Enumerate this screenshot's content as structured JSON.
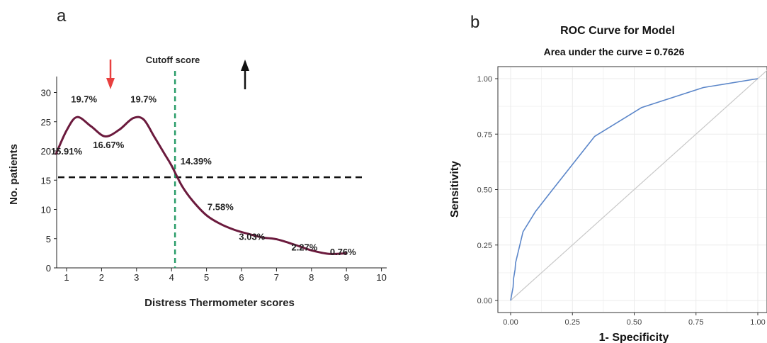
{
  "panels": {
    "a": {
      "letter": "a"
    },
    "b": {
      "letter": "b"
    }
  },
  "colors": {
    "curve_a": "#6b1a3d",
    "cutoff": "#2a9d6a",
    "hline": "#111111",
    "arrow_down": "#e8403f",
    "arrow_up": "#111111",
    "roc": "#5b86c9",
    "diag": "#c8c8c8",
    "grid": "#ebebeb"
  },
  "icons": [
    "down-arrow-icon",
    "up-arrow-icon"
  ],
  "chart_data": [
    {
      "type": "line",
      "title": "",
      "xlabel": "Distress Thermometer scores",
      "ylabel": "No. patients",
      "xlim": [
        0.7,
        10
      ],
      "ylim": [
        0,
        32
      ],
      "x_ticks": [
        "1",
        "2",
        "3",
        "4",
        "5",
        "6",
        "7",
        "8",
        "9",
        "10"
      ],
      "y_ticks": [
        "0",
        "5",
        "10",
        "15",
        "20",
        "25",
        "30"
      ],
      "grid": false,
      "series": [
        {
          "x": [
            0.7,
            1.0,
            1.3,
            1.7,
            2.1,
            2.5,
            2.9,
            3.2,
            3.5,
            3.8,
            4.0,
            4.3,
            4.6,
            5.0,
            5.4,
            5.8,
            6.2,
            6.6,
            7.0,
            7.5,
            8.0,
            8.5,
            9.0
          ],
          "y": [
            19.5,
            23.5,
            25.8,
            24.2,
            22.5,
            23.6,
            25.6,
            25.4,
            22.5,
            19.5,
            17.5,
            14.0,
            11.5,
            9.0,
            7.5,
            6.5,
            5.8,
            5.2,
            4.9,
            4.0,
            3.0,
            2.4,
            2.5
          ]
        }
      ],
      "data_labels": [
        {
          "text": "19.7%",
          "x": 1.5,
          "y": 28.3
        },
        {
          "text": "19.7%",
          "x": 3.2,
          "y": 28.3
        },
        {
          "text": "15.91%",
          "x": 1.0,
          "y": 19.4
        },
        {
          "text": "16.67%",
          "x": 2.2,
          "y": 20.5
        },
        {
          "text": "14.39%",
          "x": 4.7,
          "y": 17.7
        },
        {
          "text": "7.58%",
          "x": 5.4,
          "y": 9.9
        },
        {
          "text": "3.03%",
          "x": 6.3,
          "y": 4.8
        },
        {
          "text": "2.27%",
          "x": 7.8,
          "y": 3.0
        },
        {
          "text": "0.76%",
          "x": 8.9,
          "y": 2.2
        }
      ],
      "cutoff": {
        "label": "Cutoff score",
        "x": 4.1
      },
      "reference_line_y": 15.5
    },
    {
      "type": "line",
      "title": "ROC Curve for Model",
      "subtitle": "Area under the curve = 0.7626",
      "xlabel": "1- Specificity",
      "ylabel": "Sensitivity",
      "xlim": [
        -0.04,
        1.04
      ],
      "ylim": [
        -0.03,
        1.03
      ],
      "x_ticks": [
        "0.00",
        "0.25",
        "0.50",
        "0.75",
        "1.00"
      ],
      "y_ticks": [
        "0.00",
        "0.25",
        "0.50",
        "0.75",
        "1.00"
      ],
      "grid": true,
      "series": [
        {
          "x": [
            0.0,
            0.005,
            0.01,
            0.012,
            0.018,
            0.02,
            0.05,
            0.1,
            0.17,
            0.34,
            0.53,
            0.78,
            1.0
          ],
          "y": [
            0.0,
            0.03,
            0.06,
            0.1,
            0.14,
            0.17,
            0.31,
            0.4,
            0.5,
            0.74,
            0.87,
            0.96,
            1.0
          ]
        }
      ],
      "reference_diagonal": {
        "x": [
          0,
          1.04
        ],
        "y": [
          0,
          1.04
        ]
      }
    }
  ]
}
